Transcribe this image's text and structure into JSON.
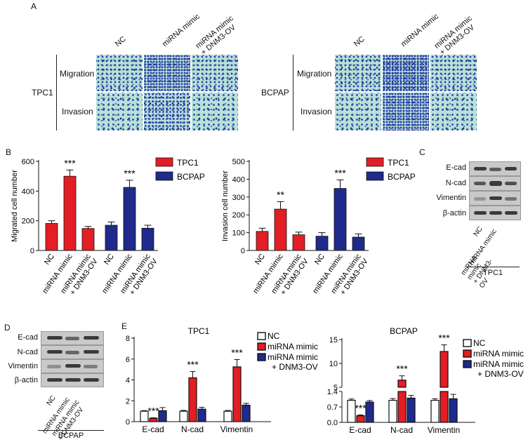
{
  "panels": {
    "A": "A",
    "B": "B",
    "C": "C",
    "D": "D",
    "E": "E"
  },
  "panel_a": {
    "columns": [
      "NC",
      "miRNA mimic",
      "miRNA mimic\n+ DNM3-OV"
    ],
    "rows": [
      "Migration",
      "Invasion"
    ],
    "groups": [
      "TPC1",
      "BCPAP"
    ]
  },
  "western": {
    "markers": [
      "E-cad",
      "N-cad",
      "Vimentin",
      "β-actin"
    ],
    "lanes": [
      "NC",
      "miRNA mimic",
      "miRNA mimic\n+ DNM3-OV"
    ],
    "tpc1_label": "TPC1",
    "bcpap_label": "BCPAP"
  },
  "chart_data": [
    {
      "type": "bar",
      "ylabel": "Migrated cell number",
      "ylim": [
        0,
        600
      ],
      "yticks": [
        0,
        200,
        400,
        600
      ],
      "groups": [
        "TPC1",
        "BCPAP"
      ],
      "categories": [
        "NC",
        "miRNA mimic",
        "miRNA mimic\n+ DNM3-OV"
      ],
      "series": [
        {
          "name": "TPC1",
          "values": [
            182,
            500,
            148
          ],
          "errors": [
            18,
            42,
            14
          ],
          "color": "#e31e24"
        },
        {
          "name": "BCPAP",
          "values": [
            170,
            425,
            150
          ],
          "errors": [
            22,
            48,
            20
          ],
          "color": "#1f2a8c"
        }
      ],
      "annotations": [
        [
          "",
          "***",
          ""
        ],
        [
          "",
          "***",
          ""
        ]
      ],
      "legend": "top-right"
    },
    {
      "type": "bar",
      "ylabel": "Invasion cell number",
      "ylim": [
        0,
        500
      ],
      "yticks": [
        0,
        100,
        200,
        300,
        400,
        500
      ],
      "groups": [
        "TPC1",
        "BCPAP"
      ],
      "categories": [
        "NC",
        "miRNA mimic",
        "miRNA mimic\n+ DNM3-OV"
      ],
      "series": [
        {
          "name": "TPC1",
          "values": [
            107,
            232,
            88
          ],
          "errors": [
            18,
            42,
            15
          ],
          "color": "#e31e24"
        },
        {
          "name": "BCPAP",
          "values": [
            80,
            348,
            75
          ],
          "errors": [
            20,
            48,
            18
          ],
          "color": "#1f2a8c"
        }
      ],
      "annotations": [
        [
          "",
          "**",
          ""
        ],
        [
          "",
          "***",
          ""
        ]
      ],
      "legend": "top-right"
    },
    {
      "type": "bar",
      "title": "TPC1",
      "ylim": [
        0,
        8
      ],
      "yticks": [
        0,
        2,
        4,
        6,
        8
      ],
      "categories": [
        "E-cad",
        "N-cad",
        "Vimentin"
      ],
      "series": [
        {
          "name": "NC",
          "values": [
            1.0,
            1.0,
            1.0
          ],
          "errors": [
            0.06,
            0.08,
            0.07
          ],
          "color": "#ffffff"
        },
        {
          "name": "miRNA mimic",
          "values": [
            0.32,
            4.2,
            5.25
          ],
          "errors": [
            0.05,
            0.6,
            0.7
          ],
          "color": "#e31e24"
        },
        {
          "name": "miRNA mimic\n+ DNM3-OV",
          "values": [
            1.05,
            1.2,
            1.58
          ],
          "errors": [
            0.3,
            0.18,
            0.18
          ],
          "color": "#1f2a8c"
        }
      ],
      "annotations": [
        "***",
        "***",
        "***"
      ],
      "legend": "top-right"
    },
    {
      "type": "bar",
      "title": "BCPAP",
      "broken_axis": true,
      "yticks_lower": [
        0.0,
        0.7,
        1.4
      ],
      "yticks_upper": [
        5,
        10,
        15
      ],
      "categories": [
        "E-cad",
        "N-cad",
        "Vimentin"
      ],
      "series": [
        {
          "name": "NC",
          "values": [
            1.0,
            1.0,
            1.0
          ],
          "errors": [
            0.06,
            0.08,
            0.07
          ],
          "color": "#ffffff"
        },
        {
          "name": "miRNA mimic",
          "values": [
            0.3,
            6.5,
            12.5
          ],
          "errors": [
            0.04,
            0.9,
            1.4
          ],
          "color": "#e31e24"
        },
        {
          "name": "miRNA mimic\n+ DNM3-OV",
          "values": [
            0.92,
            1.1,
            1.07
          ],
          "errors": [
            0.07,
            0.12,
            0.2
          ],
          "color": "#1f2a8c"
        }
      ],
      "annotations": [
        "***",
        "***",
        "***"
      ],
      "legend": "top-right"
    }
  ]
}
